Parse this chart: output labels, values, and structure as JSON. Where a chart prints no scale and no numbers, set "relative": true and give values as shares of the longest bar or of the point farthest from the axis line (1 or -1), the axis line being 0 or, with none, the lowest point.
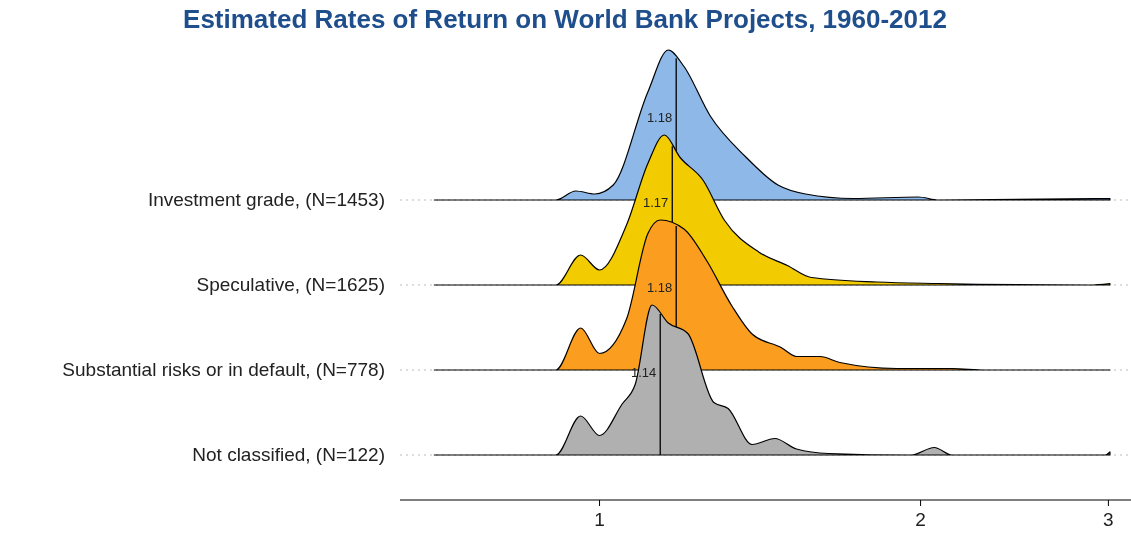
{
  "chart_data": [
    {
      "type": "area",
      "title": "Estimated Rates of Return on World Bank Projects, 1960-2012",
      "ylabel": "Investment grade, (N=1453)",
      "relative": true,
      "log": "x",
      "xlim": [
        0.65,
        3.15
      ],
      "tick_labels": false,
      "ref_lines": [
        {
          "axis": "y",
          "value": 0,
          "color": "#bbbbbb",
          "line_style": "dotted"
        },
        {
          "axis": "x",
          "value": 1.18,
          "label": "1.18",
          "color": "#000000",
          "line_style": "solid"
        }
      ],
      "series": [
        {
          "color": "#8db8e8",
          "x": [
            0.7,
            0.91,
            0.95,
            0.99,
            1.03,
            1.11,
            1.16,
            1.2,
            1.27,
            1.37,
            1.47,
            1.56,
            1.73,
            1.99,
            2.08,
            3.01
          ],
          "values": [
            0,
            0,
            0.06,
            0.04,
            0.1,
            0.72,
            1,
            0.89,
            0.56,
            0.29,
            0.1,
            0.04,
            0.01,
            0.02,
            0,
            0.01
          ]
        }
      ]
    },
    {
      "type": "area",
      "ylabel": "Speculative, (N=1625)",
      "relative": true,
      "log": "x",
      "xlim": [
        0.65,
        3.15
      ],
      "tick_labels": false,
      "ref_lines": [
        {
          "axis": "y",
          "value": 0,
          "color": "#bbbbbb",
          "line_style": "dotted"
        },
        {
          "axis": "x",
          "value": 1.17,
          "label": "1.17",
          "color": "#000000",
          "line_style": "solid"
        }
      ],
      "series": [
        {
          "color": "#f2cc00",
          "x": [
            0.7,
            0.91,
            0.96,
            1.0,
            1.06,
            1.11,
            1.15,
            1.19,
            1.25,
            1.31,
            1.41,
            1.5,
            1.58,
            1.82,
            2.08,
            2.88,
            3.01
          ],
          "values": [
            0,
            0,
            0.2,
            0.1,
            0.4,
            0.81,
            1,
            0.85,
            0.7,
            0.43,
            0.22,
            0.13,
            0.05,
            0.02,
            0.01,
            0,
            0.01
          ]
        }
      ]
    },
    {
      "type": "area",
      "ylabel": "Substantial risks or in default, (N=778)",
      "relative": true,
      "log": "x",
      "xlim": [
        0.65,
        3.15
      ],
      "tick_labels": false,
      "ref_lines": [
        {
          "axis": "y",
          "value": 0,
          "color": "#bbbbbb",
          "line_style": "dotted"
        },
        {
          "axis": "x",
          "value": 1.18,
          "label": "1.18",
          "color": "#000000",
          "line_style": "solid"
        }
      ],
      "series": [
        {
          "color": "#fb9d1e",
          "x": [
            0.7,
            0.91,
            0.96,
            1.0,
            1.06,
            1.11,
            1.14,
            1.2,
            1.26,
            1.33,
            1.39,
            1.48,
            1.53,
            1.61,
            1.68,
            1.9,
            2.02,
            2.14,
            2.3,
            3.01
          ],
          "values": [
            0,
            0,
            0.28,
            0.11,
            0.34,
            0.91,
            1,
            0.94,
            0.73,
            0.43,
            0.24,
            0.15,
            0.09,
            0.09,
            0.05,
            0.01,
            0.01,
            0.01,
            0,
            0
          ]
        }
      ]
    },
    {
      "type": "area",
      "ylabel": "Not classified, (N=122)",
      "relative": true,
      "log": "x",
      "xlim": [
        0.65,
        3.15
      ],
      "xticks": [
        1,
        2,
        3
      ],
      "tick_labels": "x",
      "ref_lines": [
        {
          "axis": "y",
          "value": 0,
          "color": "#bbbbbb",
          "line_style": "dotted"
        },
        {
          "axis": "x",
          "value": 1.14,
          "label": "1.14",
          "color": "#000000",
          "line_style": "solid"
        }
      ],
      "series": [
        {
          "color": "#b0b0b0",
          "x": [
            0.7,
            0.91,
            0.96,
            1.0,
            1.05,
            1.08,
            1.12,
            1.16,
            1.21,
            1.28,
            1.32,
            1.39,
            1.46,
            1.53,
            1.64,
            1.96,
            2.06,
            2.14,
            2.98,
            3.01
          ],
          "values": [
            0,
            0,
            0.26,
            0.13,
            0.34,
            0.47,
            1,
            0.88,
            0.81,
            0.35,
            0.31,
            0.07,
            0.11,
            0.04,
            0.01,
            0,
            0.05,
            0,
            0,
            0.02
          ]
        }
      ]
    }
  ]
}
